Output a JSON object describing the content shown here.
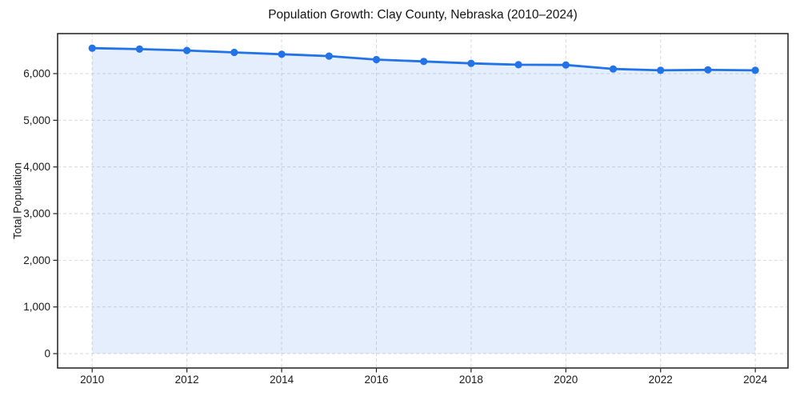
{
  "chart_data": {
    "type": "line",
    "title": "Population Growth: Clay County, Nebraska (2010–2024)",
    "xlabel": "",
    "ylabel": "Total Population",
    "x": [
      2010,
      2011,
      2012,
      2013,
      2014,
      2015,
      2016,
      2017,
      2018,
      2019,
      2020,
      2021,
      2022,
      2023,
      2024
    ],
    "series": [
      {
        "name": "Total Population",
        "values": [
          6545,
          6525,
          6495,
          6455,
          6415,
          6375,
          6300,
          6260,
          6220,
          6190,
          6185,
          6100,
          6070,
          6080,
          6070
        ]
      }
    ],
    "xticks": [
      2010,
      2012,
      2014,
      2016,
      2018,
      2020,
      2022,
      2024
    ],
    "yticks": [
      0,
      1000,
      2000,
      3000,
      4000,
      5000,
      6000
    ],
    "xlim": [
      2009.27,
      2024.69
    ],
    "ylim": [
      -308,
      6857
    ],
    "grid": true,
    "legend": false,
    "area_fill": true,
    "styles": {
      "line_color": "#2272e8",
      "marker_color": "#2272e8",
      "fill_color": "rgba(34,114,232,0.12)",
      "grid_color": "#d9d9d9",
      "spine_color": "#1f1f1f",
      "tick_label_color": "#1a1a1a",
      "title_color": "#151515"
    }
  }
}
